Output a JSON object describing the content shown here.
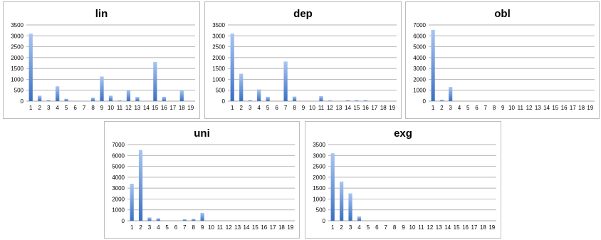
{
  "chart_data": [
    {
      "type": "bar",
      "title": "lin",
      "categories": [
        "1",
        "2",
        "3",
        "4",
        "5",
        "6",
        "7",
        "8",
        "9",
        "10",
        "11",
        "12",
        "13",
        "14",
        "15",
        "16",
        "17",
        "18",
        "19"
      ],
      "values": [
        3100,
        250,
        40,
        680,
        110,
        0,
        0,
        160,
        1130,
        250,
        30,
        520,
        190,
        0,
        1800,
        200,
        0,
        510,
        0
      ],
      "ylim": [
        0,
        3500
      ],
      "yticks": [
        "0",
        "500",
        "1000",
        "1500",
        "2000",
        "2500",
        "3000",
        "3500"
      ],
      "grid": true,
      "bar_color": "#5b8fe0"
    },
    {
      "type": "bar",
      "title": "dep",
      "categories": [
        "1",
        "2",
        "3",
        "4",
        "5",
        "6",
        "7",
        "8",
        "9",
        "10",
        "11",
        "12",
        "13",
        "14",
        "15",
        "16",
        "17",
        "18",
        "19"
      ],
      "values": [
        3100,
        1260,
        40,
        540,
        200,
        0,
        1820,
        210,
        0,
        0,
        230,
        30,
        0,
        40,
        40,
        40,
        0,
        0,
        0
      ],
      "ylim": [
        0,
        3500
      ],
      "yticks": [
        "0",
        "500",
        "1000",
        "1500",
        "2000",
        "2500",
        "3000",
        "3500"
      ],
      "grid": true,
      "bar_color": "#5b8fe0"
    },
    {
      "type": "bar",
      "title": "obl",
      "categories": [
        "1",
        "2",
        "3",
        "4",
        "5",
        "6",
        "7",
        "8",
        "9",
        "10",
        "11",
        "12",
        "13",
        "14",
        "15",
        "16",
        "17",
        "18",
        "19"
      ],
      "values": [
        6550,
        120,
        1300,
        0,
        0,
        0,
        0,
        0,
        0,
        0,
        0,
        0,
        0,
        0,
        0,
        0,
        0,
        0,
        0
      ],
      "ylim": [
        0,
        7000
      ],
      "yticks": [
        "0",
        "1000",
        "2000",
        "3000",
        "4000",
        "5000",
        "6000",
        "7000"
      ],
      "grid": true,
      "bar_color": "#5b8fe0"
    },
    {
      "type": "bar",
      "title": "uni",
      "categories": [
        "1",
        "2",
        "3",
        "4",
        "5",
        "6",
        "7",
        "8",
        "9",
        "10",
        "11",
        "12",
        "13",
        "14",
        "15",
        "16",
        "17",
        "18",
        "19"
      ],
      "values": [
        3400,
        6500,
        300,
        230,
        0,
        0,
        140,
        180,
        730,
        0,
        0,
        0,
        0,
        0,
        0,
        0,
        0,
        0,
        0
      ],
      "ylim": [
        0,
        7000
      ],
      "yticks": [
        "0",
        "1000",
        "2000",
        "3000",
        "4000",
        "5000",
        "6000",
        "7000"
      ],
      "grid": true,
      "bar_color": "#5b8fe0"
    },
    {
      "type": "bar",
      "title": "exg",
      "categories": [
        "1",
        "2",
        "3",
        "4",
        "5",
        "6",
        "7",
        "8",
        "9",
        "10",
        "11",
        "12",
        "13",
        "14",
        "15",
        "16",
        "17",
        "18",
        "19"
      ],
      "values": [
        3100,
        1800,
        1260,
        200,
        0,
        0,
        0,
        0,
        0,
        0,
        0,
        0,
        0,
        0,
        0,
        0,
        0,
        0,
        0
      ],
      "ylim": [
        0,
        3500
      ],
      "yticks": [
        "0",
        "500",
        "1000",
        "1500",
        "2000",
        "2500",
        "3000",
        "3500"
      ],
      "grid": true,
      "bar_color": "#5b8fe0"
    }
  ]
}
